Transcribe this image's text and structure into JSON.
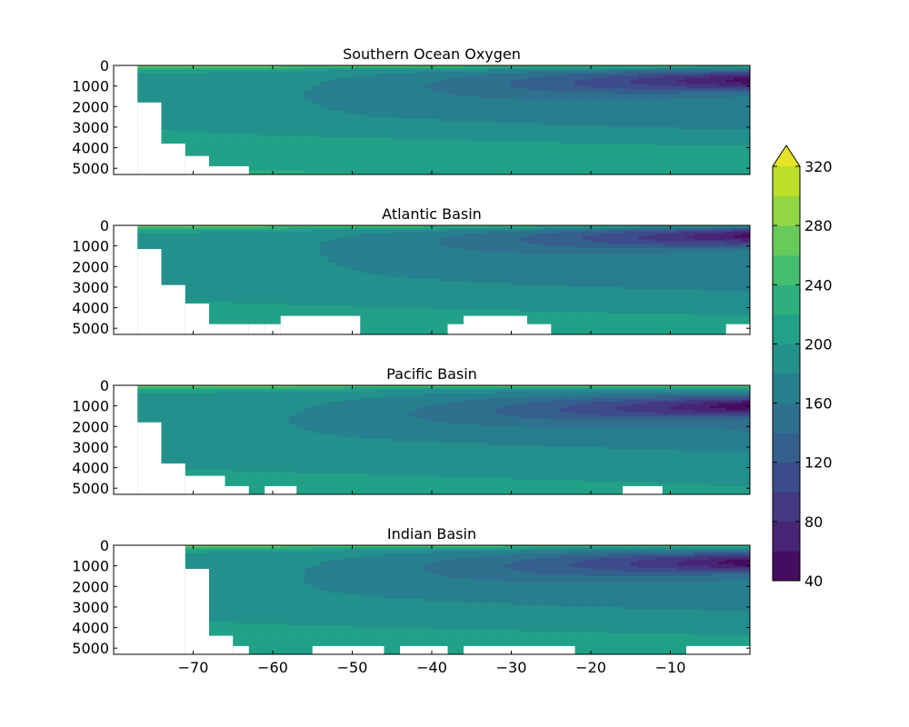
{
  "chart_data": {
    "type": "heatmap",
    "figure_title": "",
    "panels": [
      {
        "title": "Southern Ocean Oxygen",
        "xlim": [
          -80,
          0
        ],
        "ylim": [
          5300,
          0
        ],
        "yticks": [
          0,
          1000,
          2000,
          3000,
          4000,
          5000
        ],
        "oxygen_low_core": {
          "x": -5,
          "depth": 700,
          "value": 60
        },
        "bottom_value": 230
      },
      {
        "title": "Atlantic Basin",
        "xlim": [
          -80,
          0
        ],
        "ylim": [
          5300,
          0
        ],
        "yticks": [
          0,
          1000,
          2000,
          3000,
          4000,
          5000
        ],
        "oxygen_low_core": {
          "x": -5,
          "depth": 500,
          "value": 60
        },
        "bottom_value": 215
      },
      {
        "title": "Pacific Basin",
        "xlim": [
          -80,
          0
        ],
        "ylim": [
          5300,
          0
        ],
        "yticks": [
          0,
          1000,
          2000,
          3000,
          4000,
          5000
        ],
        "oxygen_low_core": {
          "x": -5,
          "depth": 1000,
          "value": 60
        },
        "bottom_value": 210
      },
      {
        "title": "Indian Basin",
        "xlim": [
          -80,
          0
        ],
        "ylim": [
          5300,
          0
        ],
        "yticks": [
          0,
          1000,
          2000,
          3000,
          4000,
          5000
        ],
        "oxygen_low_core": {
          "x": -5,
          "depth": 800,
          "value": 60
        },
        "bottom_value": 215
      }
    ],
    "xticks": [
      -70,
      -60,
      -50,
      -40,
      -30,
      -20,
      -10
    ],
    "colorbar": {
      "ticks": [
        40,
        80,
        120,
        160,
        200,
        240,
        280,
        320
      ],
      "levels": [
        40,
        60,
        80,
        100,
        120,
        140,
        160,
        180,
        200,
        220,
        240,
        260,
        280,
        300,
        320,
        340
      ],
      "extend": "max",
      "colormap": "viridis"
    },
    "grid": false
  }
}
